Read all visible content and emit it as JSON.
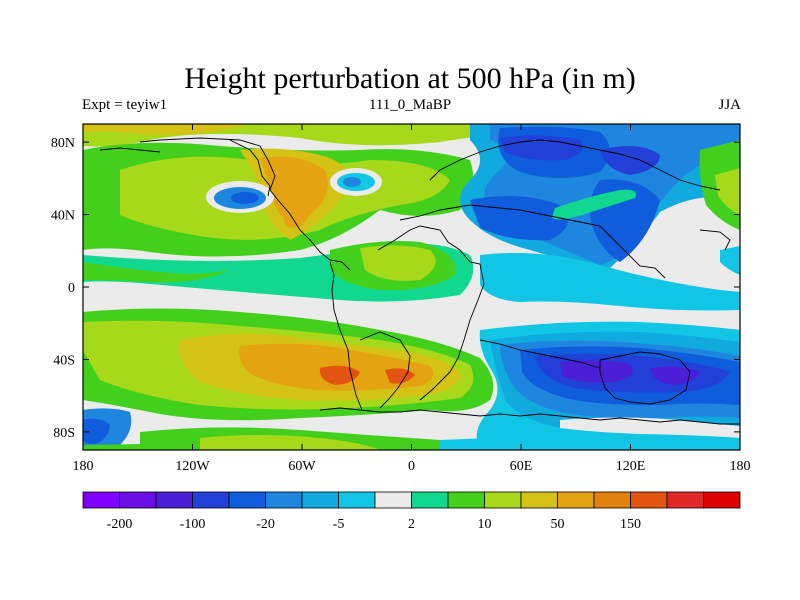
{
  "title": "Height perturbation at 500 hPa (in m)",
  "subtitle_left": "Expt = teyiw1",
  "subtitle_center": "111_0_MaBP",
  "subtitle_right": "JJA",
  "chart_data": {
    "type": "heatmap",
    "title": "Height perturbation at 500 hPa (in m)",
    "x_ticks": [
      "180",
      "120W",
      "60W",
      "0",
      "60E",
      "120E",
      "180"
    ],
    "y_ticks": [
      "80N",
      "40N",
      "0",
      "40S",
      "80S"
    ],
    "xlim": [
      -180,
      180
    ],
    "ylim": [
      -90,
      90
    ],
    "colorbar_labels": [
      "-200",
      "-100",
      "-20",
      "-5",
      "2",
      "10",
      "50",
      "150"
    ],
    "colorbar_colors": [
      "#7f00ff",
      "#6a0fe6",
      "#4a1fd6",
      "#2240d8",
      "#0f5cdc",
      "#1f86e0",
      "#11aadf",
      "#10c6e4",
      "#ebebeb",
      "#10d890",
      "#43d01c",
      "#a8d81a",
      "#d4c215",
      "#e4a310",
      "#e2820e",
      "#e25410",
      "#e02828",
      "#df0000"
    ],
    "dominant_patterns": [
      "Green-yellow positive anomalies over Atlantic, Africa and North America",
      "Orange maximum (>50 m) over South Atlantic near 45S",
      "Blue negative anomalies over Eurasia and North Pacific",
      "Deep purple-blue minimum (<-100 m) over southern Indian Ocean / Australia near 45S"
    ]
  }
}
